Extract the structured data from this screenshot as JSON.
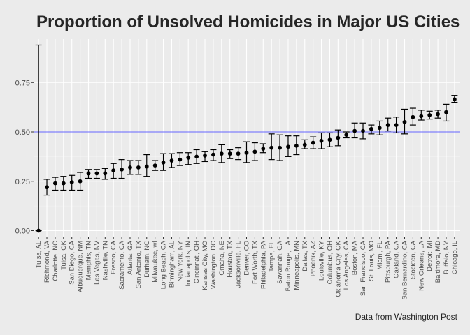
{
  "chart_data": {
    "type": "scatter",
    "title": "Proportion of Unsolved Homicides in Major US Cities",
    "caption": "Data from Washington Post",
    "xlabel": "",
    "ylabel": "",
    "ylim": [
      -0.03,
      0.97
    ],
    "yticks": [
      "0.00",
      "0.25",
      "0.50",
      "0.75"
    ],
    "ytick_values": [
      0,
      0.25,
      0.5,
      0.75
    ],
    "reference_line": 0.5,
    "reference_color": "#6666ff",
    "grid": true,
    "categories": [
      "Tulsa, AL",
      "Richmond, VA",
      "Charlotte, NC",
      "Tulsa, OK",
      "San Diego, CA",
      "Albuquerque, NM",
      "Memphis, TN",
      "Las Vegas, NV",
      "Nashville, TN",
      "Fresno, CA",
      "Sacramento, CA",
      "Atlanta, GA",
      "San Antonio, TX",
      "Durham, NC",
      "Milwaukee, wI",
      "Long Beach, CA",
      "Birmingham, AL",
      "New York, NY",
      "Indianapolis, IN",
      "Cincinnati, OH",
      "Kansas City, MO",
      "Washington, DC",
      "Omaha, NE",
      "Houston, TX",
      "Jacksonville, FL",
      "Denver, CO",
      "Fort Worth, TX",
      "Philadelphia, PA",
      "Tampa, FL",
      "Savannah, GA",
      "Baton Rouge, LA",
      "Minneapolis, MN",
      "Dallas, TX",
      "Phoenix, AZ",
      "Louisville, KY",
      "Columbus, OH",
      "Oklahoma City, OK",
      "Los Angeles, CA",
      "Boston, MA",
      "San Francisco, CA",
      "St. Louis, MO",
      "Miami, FL",
      "Pittsburgh, PA",
      "Oakland, CA",
      "San Bernardino, CA",
      "Stockton, CA",
      "New Orleans, LA",
      "Detroit, MI",
      "Baltimore, MD",
      "Buffalo, NY",
      "Chicago, IL"
    ],
    "series": [
      {
        "estimate": [
          0.0,
          0.22,
          0.24,
          0.24,
          0.245,
          0.25,
          0.29,
          0.29,
          0.29,
          0.305,
          0.31,
          0.32,
          0.32,
          0.325,
          0.33,
          0.345,
          0.355,
          0.36,
          0.37,
          0.375,
          0.38,
          0.385,
          0.39,
          0.39,
          0.39,
          0.395,
          0.4,
          0.415,
          0.42,
          0.42,
          0.425,
          0.43,
          0.435,
          0.445,
          0.455,
          0.46,
          0.47,
          0.485,
          0.505,
          0.505,
          0.515,
          0.52,
          0.535,
          0.535,
          0.55,
          0.575,
          0.58,
          0.585,
          0.59,
          0.6,
          0.665
        ],
        "conf_low": [
          0.0,
          0.18,
          0.205,
          0.205,
          0.205,
          0.205,
          0.265,
          0.265,
          0.26,
          0.265,
          0.265,
          0.285,
          0.285,
          0.275,
          0.305,
          0.305,
          0.32,
          0.33,
          0.335,
          0.34,
          0.35,
          0.355,
          0.345,
          0.365,
          0.36,
          0.345,
          0.355,
          0.395,
          0.36,
          0.355,
          0.375,
          0.385,
          0.415,
          0.415,
          0.415,
          0.425,
          0.43,
          0.47,
          0.47,
          0.465,
          0.49,
          0.485,
          0.505,
          0.495,
          0.49,
          0.535,
          0.56,
          0.565,
          0.57,
          0.555,
          0.65
        ],
        "conf_high": [
          0.94,
          0.26,
          0.27,
          0.275,
          0.28,
          0.295,
          0.31,
          0.31,
          0.315,
          0.34,
          0.36,
          0.355,
          0.355,
          0.385,
          0.355,
          0.39,
          0.39,
          0.395,
          0.395,
          0.41,
          0.4,
          0.41,
          0.435,
          0.41,
          0.42,
          0.45,
          0.445,
          0.44,
          0.49,
          0.485,
          0.48,
          0.48,
          0.46,
          0.475,
          0.495,
          0.495,
          0.51,
          0.5,
          0.545,
          0.545,
          0.535,
          0.555,
          0.57,
          0.575,
          0.615,
          0.62,
          0.61,
          0.605,
          0.61,
          0.64,
          0.685
        ]
      }
    ]
  }
}
